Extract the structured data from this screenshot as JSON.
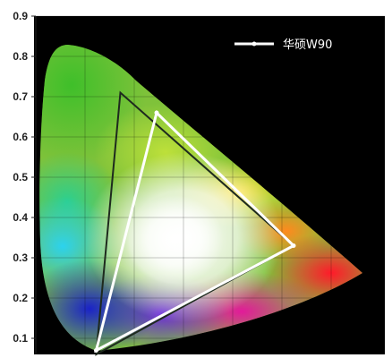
{
  "chart_data": {
    "type": "scatter",
    "title": "",
    "xlabel": "",
    "ylabel": "",
    "ylim": [
      0.05,
      0.9
    ],
    "y_ticks": [
      "0.9",
      "0.8",
      "0.7",
      "0.6",
      "0.5",
      "0.4",
      "0.3",
      "0.2",
      "0.1"
    ],
    "grid": true,
    "legend_position": "top-right",
    "background_color": "#000000",
    "series": [
      {
        "name": "华硕W90",
        "color": "#ffffff",
        "closed": true,
        "x": [
          0.64,
          0.3,
          0.15
        ],
        "y": [
          0.33,
          0.66,
          0.07
        ]
      },
      {
        "color": "#1e2a1e",
        "closed": true,
        "x": [
          0.64,
          0.21,
          0.15
        ],
        "y": [
          0.33,
          0.71,
          0.06
        ]
      }
    ]
  }
}
